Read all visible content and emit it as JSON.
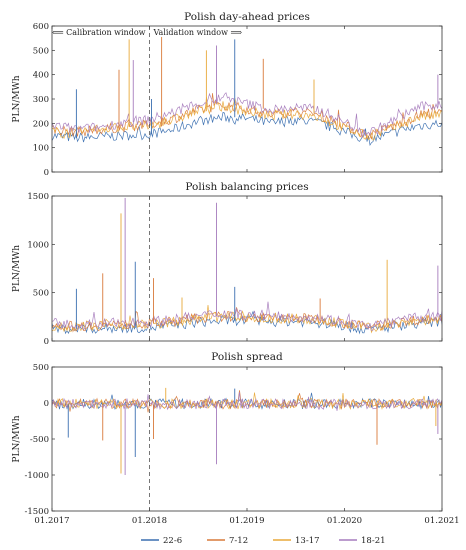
{
  "figure": {
    "legend": [
      "22-6",
      "7-12",
      "13-17",
      "18-21"
    ],
    "x_ticks": [
      "01.2017",
      "01.2018",
      "01.2019",
      "01.2020",
      "01.2021"
    ]
  },
  "chart_data": [
    {
      "type": "line",
      "title": "Polish day-ahead prices",
      "ylabel": "PLN/MWh",
      "ylim": [
        0,
        600
      ],
      "yticks": [
        "0",
        "100",
        "200",
        "300",
        "400",
        "500",
        "600"
      ],
      "annotation_left": "⟸ Calibration window",
      "annotation_right": "Validation window ⟹",
      "vline_x": "01.2018",
      "x": [
        "01.2017",
        "04.2017",
        "07.2017",
        "10.2017",
        "01.2018",
        "04.2018",
        "07.2018",
        "10.2018",
        "01.2019",
        "04.2019",
        "07.2019",
        "10.2019",
        "01.2020",
        "04.2020",
        "07.2020",
        "10.2020",
        "01.2021"
      ],
      "series": [
        {
          "name": "22-6",
          "color": "#3a6fb0",
          "values": [
            150,
            140,
            145,
            150,
            155,
            175,
            210,
            225,
            220,
            200,
            215,
            200,
            165,
            130,
            160,
            190,
            200
          ]
        },
        {
          "name": "7-12",
          "color": "#d97a3a",
          "values": [
            175,
            165,
            175,
            185,
            195,
            220,
            255,
            275,
            260,
            235,
            250,
            235,
            190,
            150,
            190,
            230,
            245
          ]
        },
        {
          "name": "13-17",
          "color": "#e8a93a",
          "values": [
            165,
            160,
            180,
            185,
            190,
            215,
            250,
            270,
            250,
            230,
            240,
            225,
            180,
            145,
            180,
            225,
            235
          ]
        },
        {
          "name": "18-21",
          "color": "#a67cbd",
          "values": [
            195,
            175,
            185,
            205,
            215,
            245,
            280,
            305,
            280,
            255,
            265,
            255,
            205,
            160,
            210,
            265,
            280
          ]
        }
      ],
      "spikes": [
        [
          "04.2017",
          340
        ],
        [
          "09.2017",
          420
        ],
        [
          "10.2017",
          545
        ],
        [
          "11.2017",
          460
        ],
        [
          "01.2018",
          300
        ],
        [
          "02.2018",
          555
        ],
        [
          "08.2018",
          500
        ],
        [
          "09.2018",
          520
        ],
        [
          "11.2018",
          545
        ],
        [
          "03.2019",
          465
        ],
        [
          "09.2019",
          380
        ],
        [
          "12.2020",
          400
        ]
      ]
    },
    {
      "type": "line",
      "title": "Polish balancing prices",
      "ylabel": "PLN/MWh",
      "ylim": [
        0,
        1500
      ],
      "yticks": [
        "0",
        "500",
        "1000",
        "1500"
      ],
      "vline_x": "01.2018",
      "x": [
        "01.2017",
        "04.2017",
        "07.2017",
        "10.2017",
        "01.2018",
        "04.2018",
        "07.2018",
        "10.2018",
        "01.2019",
        "04.2019",
        "07.2019",
        "10.2019",
        "01.2020",
        "04.2020",
        "07.2020",
        "10.2020",
        "01.2021"
      ],
      "series": [
        {
          "name": "22-6",
          "color": "#3a6fb0",
          "values": [
            130,
            125,
            130,
            135,
            140,
            160,
            195,
            210,
            215,
            200,
            205,
            190,
            155,
            115,
            150,
            185,
            195
          ]
        },
        {
          "name": "7-12",
          "color": "#d97a3a",
          "values": [
            165,
            150,
            160,
            175,
            180,
            200,
            235,
            255,
            255,
            230,
            240,
            225,
            185,
            140,
            185,
            220,
            230
          ]
        },
        {
          "name": "13-17",
          "color": "#e8a93a",
          "values": [
            160,
            150,
            165,
            170,
            175,
            195,
            230,
            250,
            245,
            225,
            235,
            215,
            180,
            135,
            180,
            215,
            225
          ]
        },
        {
          "name": "18-21",
          "color": "#a67cbd",
          "values": [
            185,
            165,
            175,
            195,
            200,
            225,
            260,
            285,
            275,
            250,
            255,
            245,
            200,
            150,
            200,
            245,
            260
          ]
        }
      ],
      "spikes": [
        [
          "04.2017",
          540
        ],
        [
          "07.2017",
          700
        ],
        [
          "09.2017",
          1320
        ],
        [
          "10.2017",
          1480
        ],
        [
          "11.2017",
          820
        ],
        [
          "01.2018",
          650
        ],
        [
          "05.2018",
          450
        ],
        [
          "09.2018",
          1430
        ],
        [
          "11.2018",
          560
        ],
        [
          "10.2019",
          440
        ],
        [
          "06.2020",
          840
        ],
        [
          "12.2020",
          780
        ]
      ]
    },
    {
      "type": "line",
      "title": "Polish spread",
      "ylabel": "PLN/MWh",
      "ylim": [
        -1500,
        500
      ],
      "yticks": [
        "-1500",
        "-1000",
        "-500",
        "0",
        "500"
      ],
      "vline_x": "01.2018",
      "x": [
        "01.2017",
        "04.2017",
        "07.2017",
        "10.2017",
        "01.2018",
        "04.2018",
        "07.2018",
        "10.2018",
        "01.2019",
        "04.2019",
        "07.2019",
        "10.2019",
        "01.2020",
        "04.2020",
        "07.2020",
        "10.2020",
        "01.2021"
      ],
      "series": [
        {
          "name": "22-6",
          "color": "#3a6fb0",
          "values": [
            -20,
            -15,
            -10,
            -25,
            -15,
            -10,
            -20,
            -5,
            -15,
            -10,
            -20,
            -10,
            -15,
            -5,
            -10,
            -20,
            -15
          ]
        },
        {
          "name": "7-12",
          "color": "#d97a3a",
          "values": [
            -10,
            -20,
            -5,
            -15,
            -20,
            -5,
            -10,
            -15,
            -5,
            -20,
            -5,
            -15,
            -10,
            -15,
            -5,
            -10,
            -20
          ]
        },
        {
          "name": "13-17",
          "color": "#e8a93a",
          "values": [
            -15,
            -5,
            -20,
            -10,
            -5,
            -15,
            -5,
            -10,
            -20,
            -5,
            -15,
            -5,
            -20,
            -10,
            -15,
            -5,
            -10
          ]
        },
        {
          "name": "18-21",
          "color": "#a67cbd",
          "values": [
            -5,
            -10,
            -15,
            -5,
            -10,
            -20,
            -15,
            -5,
            -10,
            -15,
            -10,
            -20,
            -5,
            -20,
            -15,
            -15,
            -5
          ]
        }
      ],
      "spikes": [
        [
          "03.2017",
          -480
        ],
        [
          "07.2017",
          -520
        ],
        [
          "09.2017",
          -980
        ],
        [
          "10.2017",
          -1000
        ],
        [
          "11.2017",
          -750
        ],
        [
          "01.2018",
          -500
        ],
        [
          "03.2018",
          210
        ],
        [
          "09.2018",
          -850
        ],
        [
          "11.2018",
          200
        ],
        [
          "05.2020",
          -580
        ],
        [
          "12.2020",
          -320
        ],
        [
          "12.2020",
          -430
        ]
      ]
    }
  ]
}
